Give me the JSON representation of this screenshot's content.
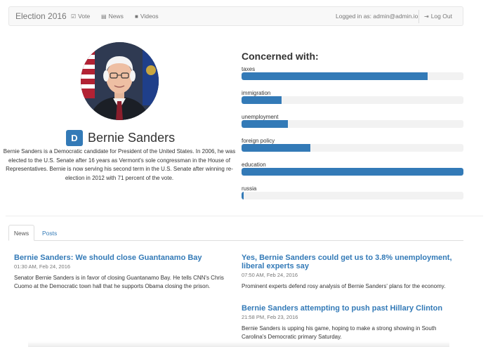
{
  "navbar": {
    "brand": "Election 2016",
    "links": [
      {
        "label": "Vote",
        "icon": "checkbox-icon"
      },
      {
        "label": "News",
        "icon": "newspaper-icon"
      },
      {
        "label": "Videos",
        "icon": "video-camera-icon"
      }
    ],
    "logged_in_text": "Logged in as: admin@admin.io",
    "logout_label": "Log Out",
    "logout_icon": "sign-out-icon"
  },
  "candidate": {
    "badge": "D",
    "name": "Bernie Sanders",
    "bio": "Bernie Sanders is a Democratic candidate for President of the United States. In 2006, he was elected to the U.S. Senate after 16 years as Vermont's sole congressman in the House of Representatives. Bernie is now serving his second term in the U.S. Senate after winning re-election in 2012 with 71 percent of the vote."
  },
  "concerns": {
    "title": "Concerned with:",
    "issues": [
      {
        "label": "taxes",
        "level": 0.84
      },
      {
        "label": "immigration",
        "level": 0.18
      },
      {
        "label": "unemployment",
        "level": 0.21
      },
      {
        "label": "foreign policy",
        "level": 0.31
      },
      {
        "label": "education",
        "level": 1.0
      },
      {
        "label": "russia",
        "level": 0.01
      }
    ]
  },
  "tabs": [
    {
      "label": "News",
      "active": true
    },
    {
      "label": "Posts",
      "active": false
    }
  ],
  "articles": [
    {
      "title": "Bernie Sanders: We should close Guantanamo Bay",
      "time": "01:30 AM, Feb 24, 2016",
      "desc": "Senator Bernie Sanders is in favor of closing Guantanamo Bay. He tells CNN's Chris Cuomo at the Democratic town hall that he supports Obama closing the prison."
    },
    {
      "title": "Yes, Bernie Sanders could get us to 3.8% unemployment, liberal experts say",
      "time": "07:50 AM, Feb 24, 2016",
      "desc": "Prominent experts defend rosy analysis of Bernie Sanders' plans for the economy."
    },
    {
      "title": "Bernie Sanders attempting to push past Hillary Clinton",
      "time": "21:58 PM, Feb 23, 2016",
      "desc": "Bernie Sanders is upping his game, hoping to make a strong showing in South Carolina's Democratic primary Saturday."
    }
  ],
  "colors": {
    "accent": "#337ab7",
    "track": "#f2f2f2",
    "navbar_bg": "#f8f8f8"
  }
}
